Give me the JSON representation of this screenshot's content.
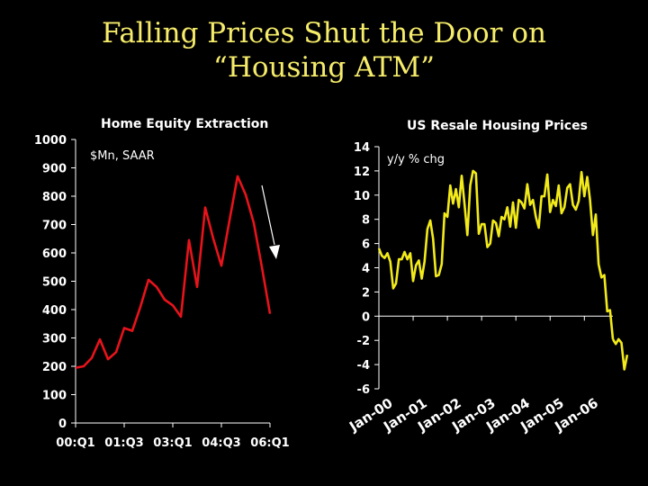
{
  "slide": {
    "title_line1": "Falling Prices Shut the Door on",
    "title_line2": "“Housing ATM”"
  },
  "colors": {
    "background": "#000000",
    "title": "#f6ec6a",
    "left_series": "#e8131b",
    "right_series": "#f2ea1a",
    "axis": "#ffffff"
  },
  "chart_data": [
    {
      "type": "line",
      "title": "Home Equity Extraction",
      "subtitle": "$Mn, SAAR",
      "ylim": [
        0,
        1000
      ],
      "yticks": [
        0,
        100,
        200,
        300,
        400,
        500,
        600,
        700,
        800,
        900,
        1000
      ],
      "xtick_labels": [
        "00:Q1",
        "01:Q3",
        "03:Q1",
        "04:Q3",
        "06:Q1"
      ],
      "xlim": [
        0,
        24
      ],
      "xtick_positions": [
        0,
        6,
        12,
        18,
        24
      ],
      "annotation": "down-arrow",
      "series": [
        {
          "values": [
            195,
            200,
            230,
            295,
            225,
            250,
            335,
            325,
            410,
            505,
            480,
            435,
            415,
            375,
            645,
            480,
            760,
            650,
            555,
            715,
            870,
            805,
            705,
            550,
            385
          ]
        }
      ]
    },
    {
      "type": "line",
      "title": "US Resale Housing Prices",
      "subtitle": "y/y % chg",
      "ylim": [
        -6,
        14
      ],
      "yticks": [
        -6,
        -4,
        -2,
        0,
        2,
        4,
        6,
        8,
        10,
        12,
        14
      ],
      "xtick_labels": [
        "Jan-00",
        "Jan-01",
        "Jan-02",
        "Jan-03",
        "Jan-04",
        "Jan-05",
        "Jan-06"
      ],
      "xlim": [
        0,
        82
      ],
      "xtick_positions": [
        0,
        12,
        24,
        36,
        48,
        60,
        72
      ],
      "series": [
        {
          "x": [
            0,
            1,
            2,
            3,
            4,
            5,
            6,
            7,
            8,
            9,
            10,
            11,
            12,
            13,
            14,
            15,
            16,
            17,
            18,
            19,
            20,
            21,
            22,
            23,
            24,
            25,
            26,
            27,
            28,
            29,
            30,
            31,
            32,
            33,
            34,
            35,
            36,
            37,
            38,
            39,
            40,
            41,
            42,
            43,
            44,
            45,
            46,
            47,
            48,
            49,
            50,
            51,
            52,
            53,
            54,
            55,
            56,
            57,
            58,
            59,
            60,
            61,
            62,
            63,
            64,
            65,
            66,
            67,
            68,
            69,
            70,
            71,
            72,
            73,
            74,
            75,
            76,
            77,
            78,
            79,
            80,
            81,
            82
          ],
          "values": [
            5.6,
            5.0,
            4.8,
            5.2,
            4.5,
            2.3,
            2.7,
            4.7,
            4.7,
            5.3,
            4.7,
            5.2,
            2.9,
            4.2,
            4.6,
            3.1,
            4.5,
            7.2,
            7.9,
            6.4,
            3.3,
            3.4,
            4.3,
            8.5,
            8.2,
            10.8,
            9.3,
            10.5,
            9.0,
            11.6,
            9.3,
            6.7,
            10.8,
            12.0,
            11.8,
            6.8,
            7.6,
            7.6,
            5.7,
            6.0,
            7.9,
            7.7,
            6.6,
            8.2,
            8.0,
            9.0,
            7.4,
            9.4,
            7.3,
            9.6,
            9.4,
            8.9,
            10.9,
            9.2,
            9.6,
            8.2,
            7.3,
            9.9,
            9.9,
            11.7,
            8.6,
            9.6,
            9.1,
            10.8,
            8.5,
            9.0,
            10.6,
            10.9,
            9.2,
            8.8,
            9.5,
            11.9,
            9.9,
            11.5,
            9.6,
            6.7,
            8.4,
            4.3,
            3.2,
            3.4,
            0.4,
            0.5,
            -1.9
          ]
        },
        {
          "x": [
            82,
            83,
            84,
            85,
            86,
            87
          ],
          "values": [
            -1.9,
            -2.3,
            -1.9,
            -2.2,
            -4.4,
            -3.2
          ]
        }
      ]
    }
  ]
}
